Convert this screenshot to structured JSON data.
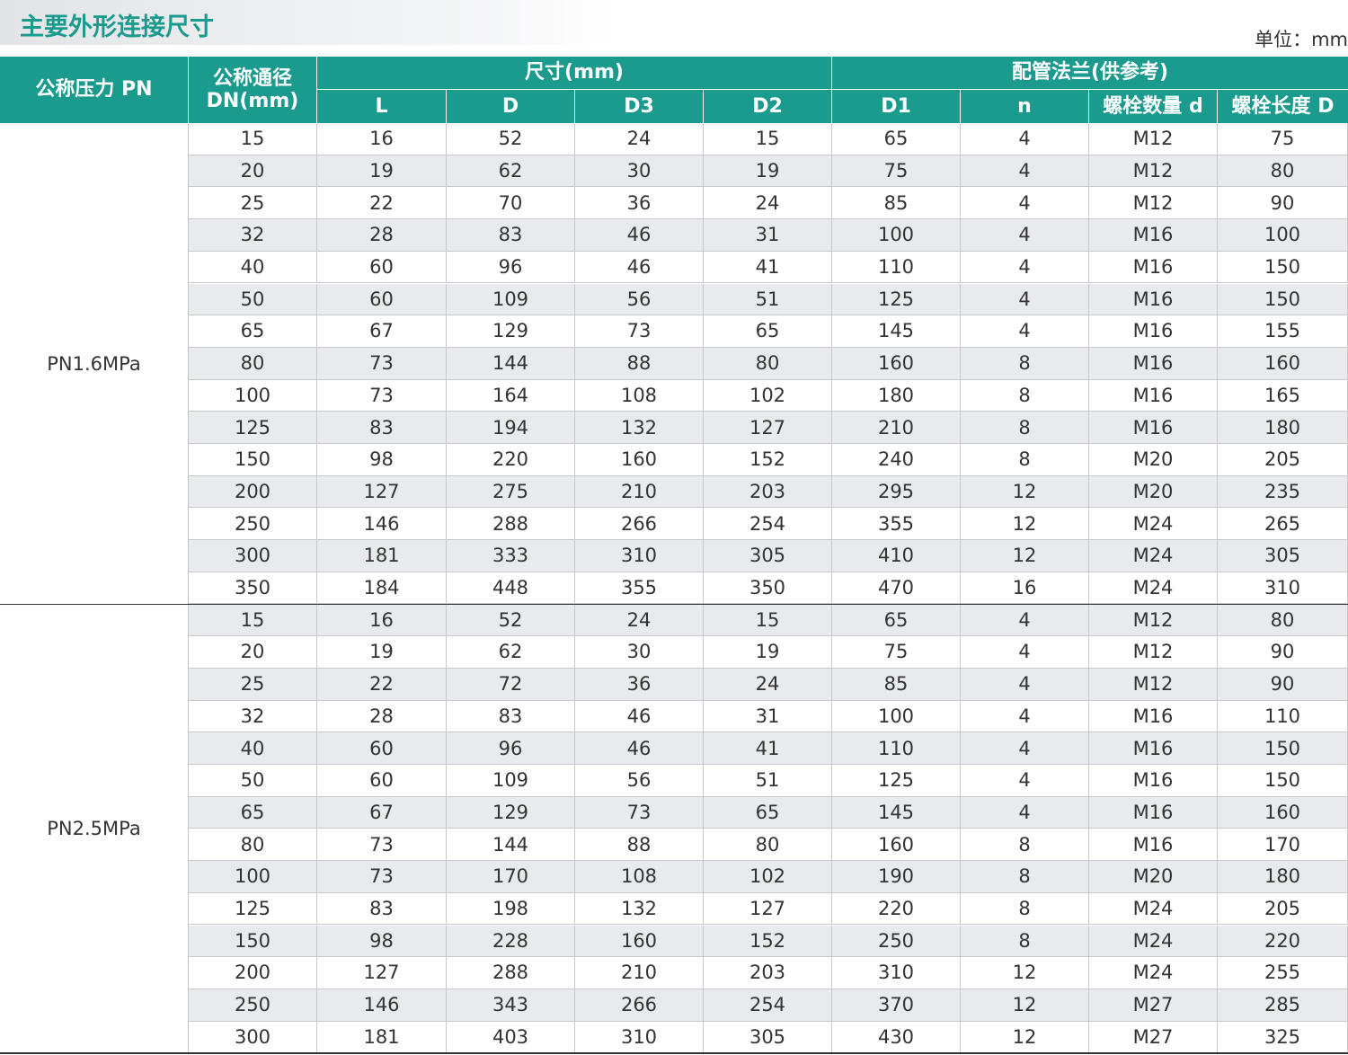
{
  "header": {
    "title": "主要外形连接尺寸",
    "unit": "单位：mm"
  },
  "table": {
    "columns": {
      "pressure": "公称压力 PN",
      "dn": [
        "公称通径",
        "DN(mm)"
      ],
      "size_group": "尺寸(mm)",
      "flange_group": "配管法兰(供参考)",
      "size": [
        "L",
        "D",
        "D3",
        "D2"
      ],
      "flange": [
        "D1",
        "n",
        "螺栓数量 d",
        "螺栓长度 D"
      ]
    },
    "groups": [
      {
        "pressure": "PN1.6MPa",
        "rows": [
          [
            15,
            16,
            52,
            24,
            15,
            65,
            4,
            "M12",
            75
          ],
          [
            20,
            19,
            62,
            30,
            19,
            75,
            4,
            "M12",
            80
          ],
          [
            25,
            22,
            70,
            36,
            24,
            85,
            4,
            "M12",
            90
          ],
          [
            32,
            28,
            83,
            46,
            31,
            100,
            4,
            "M16",
            100
          ],
          [
            40,
            60,
            96,
            46,
            41,
            110,
            4,
            "M16",
            150
          ],
          [
            50,
            60,
            109,
            56,
            51,
            125,
            4,
            "M16",
            150
          ],
          [
            65,
            67,
            129,
            73,
            65,
            145,
            4,
            "M16",
            155
          ],
          [
            80,
            73,
            144,
            88,
            80,
            160,
            8,
            "M16",
            160
          ],
          [
            100,
            73,
            164,
            108,
            102,
            180,
            8,
            "M16",
            165
          ],
          [
            125,
            83,
            194,
            132,
            127,
            210,
            8,
            "M16",
            180
          ],
          [
            150,
            98,
            220,
            160,
            152,
            240,
            8,
            "M20",
            205
          ],
          [
            200,
            127,
            275,
            210,
            203,
            295,
            12,
            "M20",
            235
          ],
          [
            250,
            146,
            288,
            266,
            254,
            355,
            12,
            "M24",
            265
          ],
          [
            300,
            181,
            333,
            310,
            305,
            410,
            12,
            "M24",
            305
          ],
          [
            350,
            184,
            448,
            355,
            350,
            470,
            16,
            "M24",
            310
          ]
        ]
      },
      {
        "pressure": "PN2.5MPa",
        "rows": [
          [
            15,
            16,
            52,
            24,
            15,
            65,
            4,
            "M12",
            80
          ],
          [
            20,
            19,
            62,
            30,
            19,
            75,
            4,
            "M12",
            90
          ],
          [
            25,
            22,
            72,
            36,
            24,
            85,
            4,
            "M12",
            90
          ],
          [
            32,
            28,
            83,
            46,
            31,
            100,
            4,
            "M16",
            110
          ],
          [
            40,
            60,
            96,
            46,
            41,
            110,
            4,
            "M16",
            150
          ],
          [
            50,
            60,
            109,
            56,
            51,
            125,
            4,
            "M16",
            150
          ],
          [
            65,
            67,
            129,
            73,
            65,
            145,
            4,
            "M16",
            160
          ],
          [
            80,
            73,
            144,
            88,
            80,
            160,
            8,
            "M16",
            170
          ],
          [
            100,
            73,
            170,
            108,
            102,
            190,
            8,
            "M20",
            180
          ],
          [
            125,
            83,
            198,
            132,
            127,
            220,
            8,
            "M24",
            205
          ],
          [
            150,
            98,
            228,
            160,
            152,
            250,
            8,
            "M24",
            220
          ],
          [
            200,
            127,
            288,
            210,
            203,
            310,
            12,
            "M24",
            255
          ],
          [
            250,
            146,
            343,
            266,
            254,
            370,
            12,
            "M27",
            285
          ],
          [
            300,
            181,
            403,
            310,
            305,
            430,
            12,
            "M27",
            325
          ]
        ]
      }
    ]
  }
}
